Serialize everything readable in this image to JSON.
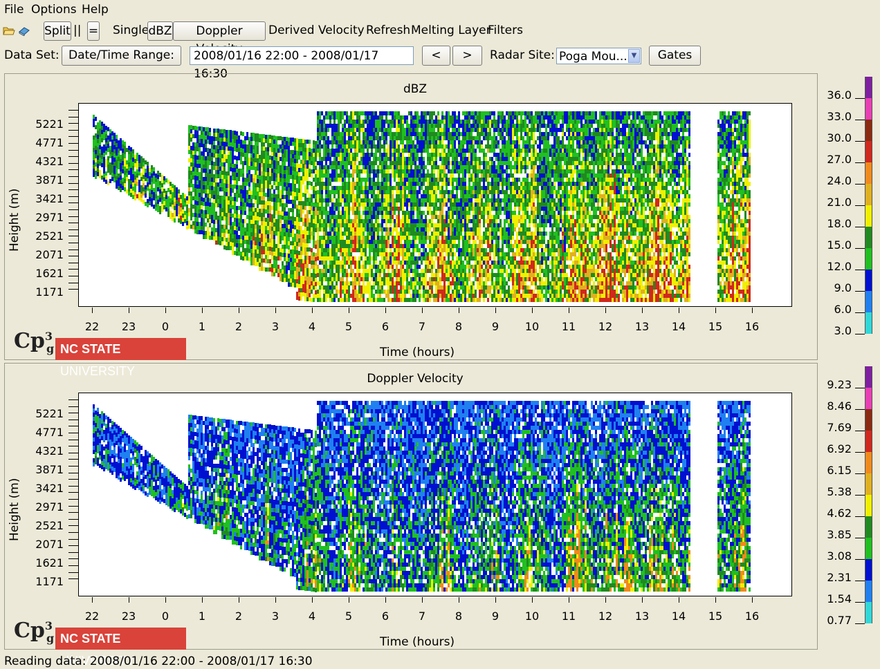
{
  "menubar": {
    "items": [
      "File",
      "Options",
      "Help"
    ]
  },
  "toolbar": {
    "icons": [
      "open-folder-icon",
      "book-icon"
    ],
    "split_label": "Split",
    "parallel_label": "||",
    "equal_label": "=",
    "single_label": "Single",
    "dbz_label": "dBZ",
    "doppler_label": "Doppler Velocity",
    "derived_label": "Derived Velocity",
    "refresh_label": "Refresh",
    "melting_label": "Melting Layer",
    "filters_label": "Filters"
  },
  "dataset": {
    "label": "Data Set:",
    "datetime_button": "Date/Time Range:",
    "range_value": "2008/01/16 22:00 - 2008/01/17 16:30",
    "prev_label": "<",
    "next_label": ">",
    "radar_label": "Radar Site:",
    "radar_value": "Poga Mou...",
    "gates_label": "Gates"
  },
  "panels": [
    {
      "title": "dBZ",
      "ylabel": "Height (m)",
      "xlabel": "Time (hours)",
      "yticks": [
        "5221",
        "4771",
        "4321",
        "3871",
        "3421",
        "2971",
        "2521",
        "2071",
        "1621",
        "1171"
      ],
      "xticks": [
        "22",
        "23",
        "0",
        "1",
        "2",
        "3",
        "4",
        "5",
        "6",
        "7",
        "8",
        "9",
        "10",
        "11",
        "12",
        "13",
        "14",
        "15",
        "16"
      ],
      "colorbar_labels": [
        "36.0",
        "33.0",
        "30.0",
        "27.0",
        "24.0",
        "21.0",
        "18.0",
        "15.0",
        "12.0",
        "9.0",
        "6.0",
        "3.0"
      ]
    },
    {
      "title": "Doppler Velocity",
      "ylabel": "Height (m)",
      "xlabel": "Time (hours)",
      "yticks": [
        "5221",
        "4771",
        "4321",
        "3871",
        "3421",
        "2971",
        "2521",
        "2071",
        "1621",
        "1171"
      ],
      "xticks": [
        "22",
        "23",
        "0",
        "1",
        "2",
        "3",
        "4",
        "5",
        "6",
        "7",
        "8",
        "9",
        "10",
        "11",
        "12",
        "13",
        "14",
        "15",
        "16"
      ],
      "colorbar_labels": [
        "9.23",
        "8.46",
        "7.69",
        "6.92",
        "6.15",
        "5.38",
        "4.62",
        "3.85",
        "3.08",
        "2.31",
        "1.54",
        "0.77"
      ]
    }
  ],
  "colorbar_colors": [
    "#7f1fa0",
    "#e83fb4",
    "#8b2a10",
    "#d0281c",
    "#f08a1c",
    "#e0b020",
    "#f0f000",
    "#208a20",
    "#20c020",
    "#0010d0",
    "#2080f0",
    "#30d8d8"
  ],
  "logo": {
    "ncsu_text_bold": "NC STATE",
    "ncsu_text_light": "UNIVERSITY"
  },
  "status": "Reading data: 2008/01/16 22:00 - 2008/01/17 16:30"
}
